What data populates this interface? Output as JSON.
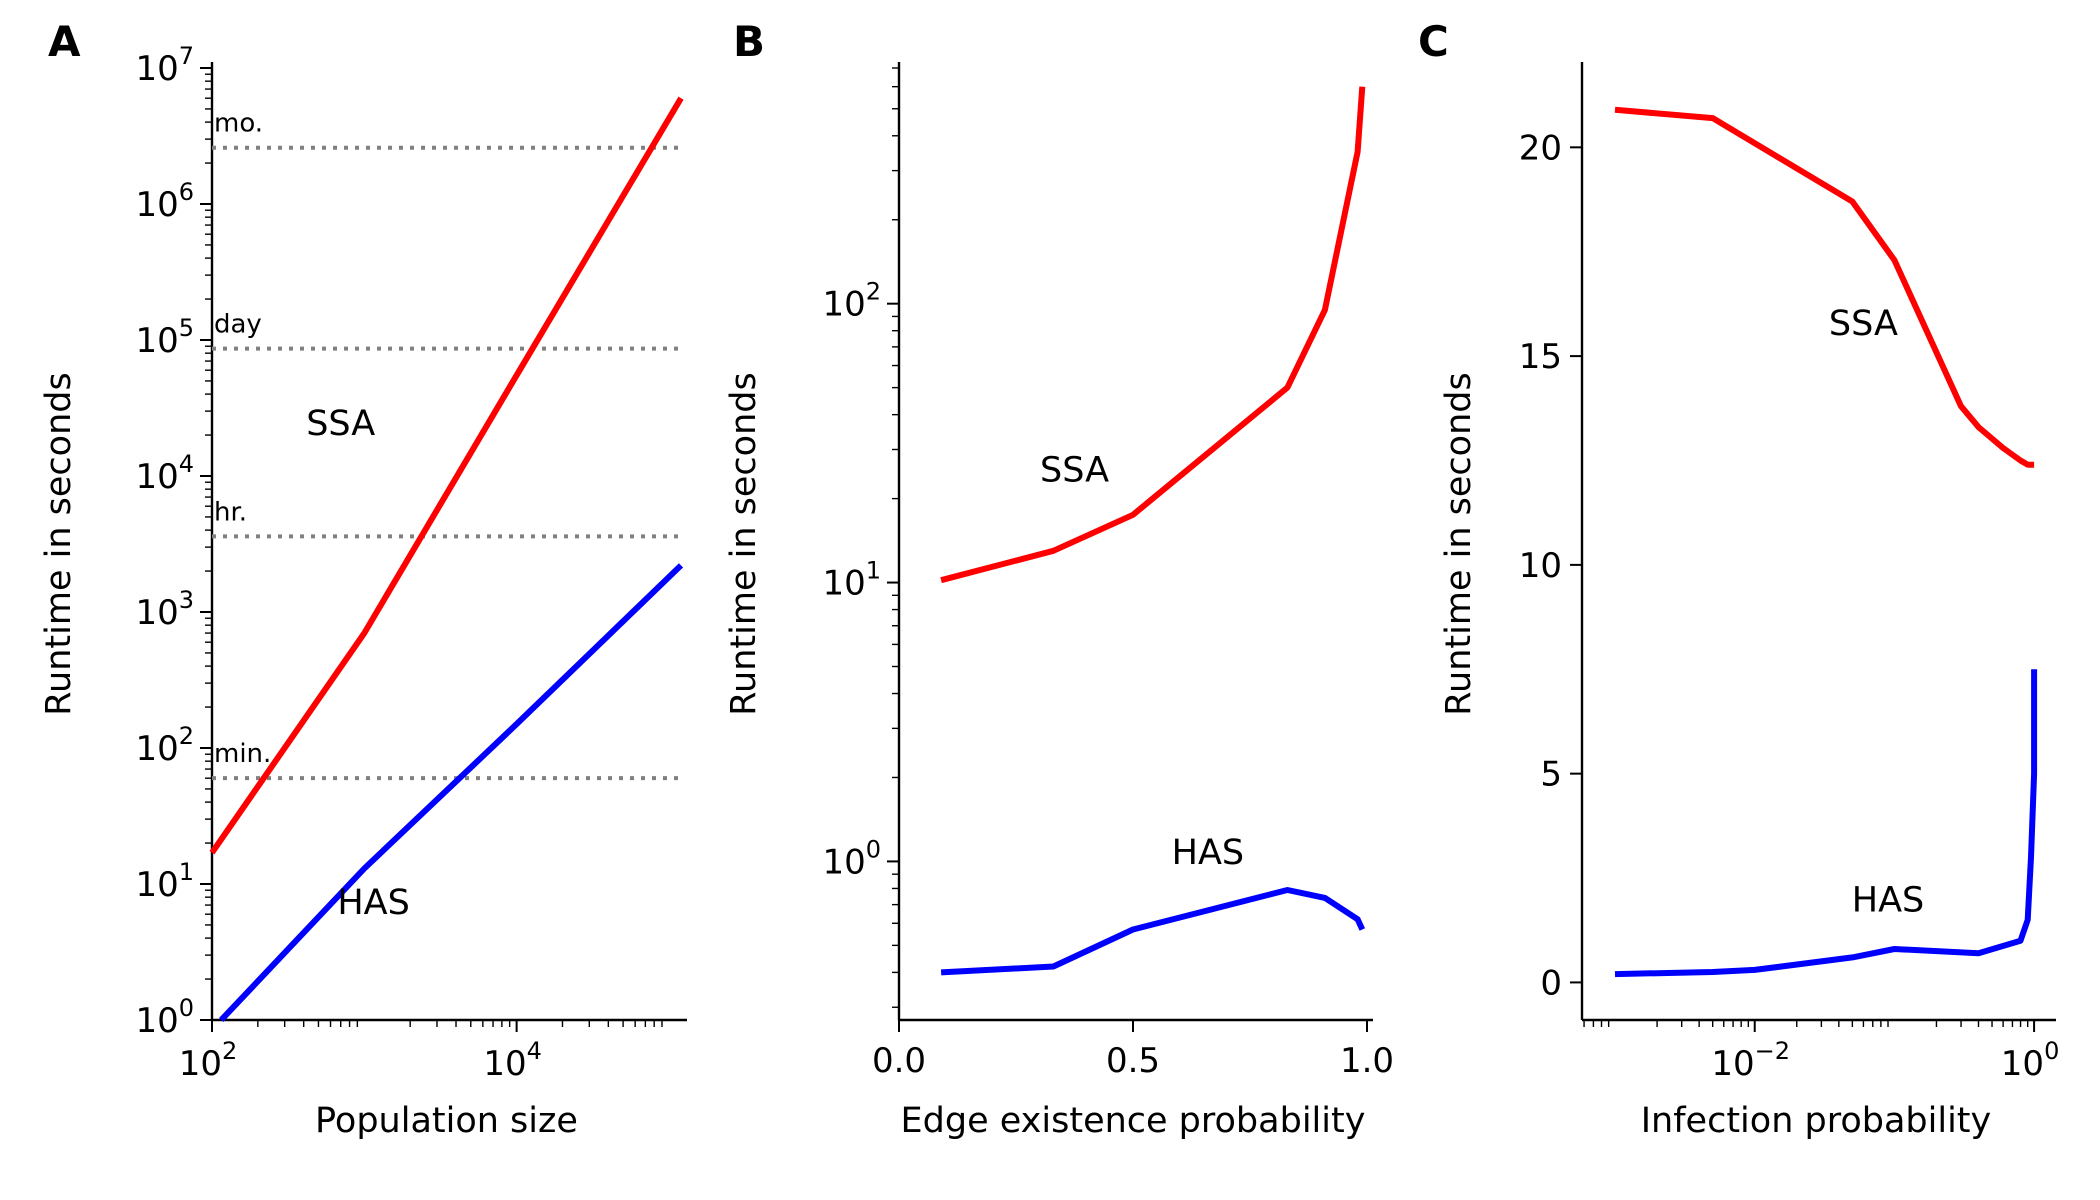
{
  "colors": {
    "SSA": "#ff0000",
    "HAS": "#0000ff",
    "reference": "#808080"
  },
  "chart_data": [
    {
      "panel": "A",
      "type": "line",
      "xlabel": "Population size",
      "ylabel": "Runtime in seconds",
      "xscale": "log",
      "yscale": "log",
      "xlim": [
        100,
        120000
      ],
      "ylim": [
        1,
        10000000
      ],
      "xticks": [
        {
          "value": 100,
          "base": "10",
          "exp": "2"
        },
        {
          "value": 10000,
          "base": "10",
          "exp": "4"
        }
      ],
      "yticks": [
        {
          "value": 1,
          "base": "10",
          "exp": "0"
        },
        {
          "value": 10,
          "base": "10",
          "exp": "1"
        },
        {
          "value": 100,
          "base": "10",
          "exp": "2"
        },
        {
          "value": 1000,
          "base": "10",
          "exp": "3"
        },
        {
          "value": 10000,
          "base": "10",
          "exp": "4"
        },
        {
          "value": 100000,
          "base": "10",
          "exp": "5"
        },
        {
          "value": 1000000,
          "base": "10",
          "exp": "6"
        },
        {
          "value": 10000000,
          "base": "10",
          "exp": "7"
        }
      ],
      "reference_lines": [
        {
          "label": "mo.",
          "y": 2592000
        },
        {
          "label": "day",
          "y": 86400
        },
        {
          "label": "hr.",
          "y": 3600
        },
        {
          "label": "min.",
          "y": 60
        }
      ],
      "series": [
        {
          "name": "SSA",
          "color": "#ff0000",
          "x": [
            100,
            1000,
            10000,
            120000
          ],
          "y": [
            17,
            700,
            55000,
            6000000
          ],
          "label_at": [
            700,
            20000
          ]
        },
        {
          "name": "HAS",
          "color": "#0000ff",
          "x": [
            115,
            1000,
            10000,
            120000
          ],
          "y": [
            1,
            13,
            150,
            2200
          ],
          "label_at": [
            1150,
            6
          ]
        }
      ]
    },
    {
      "panel": "B",
      "type": "line",
      "xlabel": "Edge existence probability",
      "ylabel": "Runtime in seconds",
      "xscale": "linear",
      "yscale": "log",
      "xlim": [
        0,
        1
      ],
      "ylim": [
        0.27,
        700
      ],
      "xticks": [
        {
          "value": 0,
          "label": "0.0"
        },
        {
          "value": 0.5,
          "label": "0.5"
        },
        {
          "value": 1,
          "label": "1.0"
        }
      ],
      "yticks": [
        {
          "value": 1,
          "base": "10",
          "exp": "0"
        },
        {
          "value": 10,
          "base": "10",
          "exp": "1"
        },
        {
          "value": 100,
          "base": "10",
          "exp": "2"
        }
      ],
      "series": [
        {
          "name": "SSA",
          "color": "#ff0000",
          "x": [
            0.09,
            0.33,
            0.5,
            0.83,
            0.91,
            0.98,
            0.99
          ],
          "y": [
            10.2,
            13,
            17.5,
            50,
            95,
            350,
            600
          ],
          "label_at": [
            0.375,
            23
          ]
        },
        {
          "name": "HAS",
          "color": "#0000ff",
          "x": [
            0.09,
            0.33,
            0.5,
            0.83,
            0.91,
            0.98,
            0.99
          ],
          "y": [
            0.4,
            0.42,
            0.57,
            0.79,
            0.74,
            0.62,
            0.57
          ],
          "label_at": [
            0.66,
            0.98
          ]
        }
      ]
    },
    {
      "panel": "C",
      "type": "line",
      "xlabel": "Infection probability",
      "ylabel": "Runtime in seconds",
      "xscale": "log",
      "yscale": "linear",
      "xlim": [
        0.00058,
        1.3
      ],
      "ylim": [
        -0.9,
        21.9
      ],
      "xticks": [
        {
          "value": 0.01,
          "base": "10",
          "exp": "−2"
        },
        {
          "value": 1,
          "base": "10",
          "exp": "0"
        }
      ],
      "yticks": [
        {
          "value": 0,
          "label": "0"
        },
        {
          "value": 5,
          "label": "5"
        },
        {
          "value": 10,
          "label": "10"
        },
        {
          "value": 15,
          "label": "15"
        },
        {
          "value": 20,
          "label": "20"
        }
      ],
      "series": [
        {
          "name": "SSA",
          "color": "#ff0000",
          "x": [
            0.001,
            0.005,
            0.01,
            0.05,
            0.1,
            0.3,
            0.4,
            0.6,
            0.8,
            0.9,
            1.0
          ],
          "y": [
            20.9,
            20.7,
            20.1,
            18.7,
            17.3,
            13.8,
            13.3,
            12.8,
            12.5,
            12.4,
            12.4
          ],
          "label_at": [
            0.06,
            15.5
          ]
        },
        {
          "name": "HAS",
          "color": "#0000ff",
          "x": [
            0.001,
            0.005,
            0.01,
            0.05,
            0.1,
            0.4,
            0.8,
            0.9,
            0.95,
            1.0,
            1.0
          ],
          "y": [
            0.2,
            0.25,
            0.3,
            0.6,
            0.8,
            0.7,
            1.0,
            1.5,
            3.0,
            5.0,
            7.5
          ],
          "label_at": [
            0.09,
            1.7
          ]
        }
      ]
    }
  ]
}
